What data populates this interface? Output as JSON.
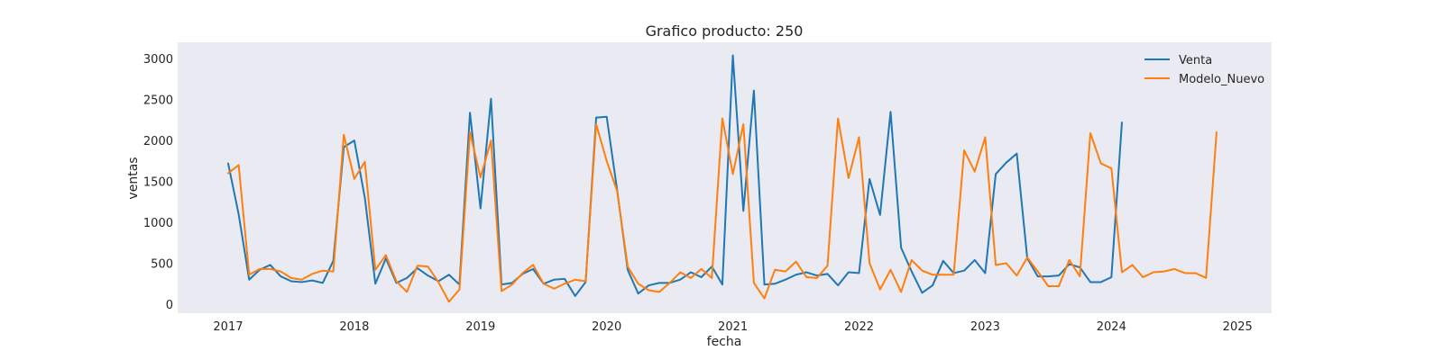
{
  "chart_data": {
    "type": "line",
    "title": "Grafico producto: 250",
    "xlabel": "fecha",
    "ylabel": "ventas",
    "xlim": [
      2016.6,
      2025.27
    ],
    "ylim": [
      -110,
      3200
    ],
    "x_ticks": [
      2017,
      2018,
      2019,
      2020,
      2021,
      2022,
      2023,
      2024,
      2025
    ],
    "y_ticks": [
      0,
      500,
      1000,
      1500,
      2000,
      2500,
      3000
    ],
    "grid": false,
    "legend_position": "top-right",
    "x_start_year": 2017,
    "points_per_year": 12,
    "colors": {
      "plot_bg": "#eaeaf2"
    },
    "series": [
      {
        "name": "Venta",
        "color": "#1f77b4",
        "values": [
          1720,
          1100,
          300,
          420,
          480,
          340,
          280,
          270,
          290,
          260,
          530,
          1920,
          2000,
          1300,
          250,
          560,
          260,
          320,
          440,
          350,
          280,
          360,
          240,
          2340,
          1170,
          2510,
          240,
          260,
          370,
          430,
          250,
          300,
          310,
          100,
          270,
          2280,
          2290,
          1390,
          420,
          130,
          230,
          260,
          260,
          300,
          390,
          330,
          460,
          240,
          3040,
          1140,
          2610,
          240,
          250,
          300,
          360,
          390,
          350,
          370,
          230,
          390,
          380,
          1530,
          1090,
          2350,
          690,
          400,
          140,
          230,
          530,
          380,
          410,
          540,
          380,
          1590,
          1730,
          1840,
          560,
          340,
          340,
          350,
          490,
          450,
          270,
          270,
          330,
          2220
        ]
      },
      {
        "name": "Modelo_Nuevo",
        "color": "#ff7f0e",
        "values": [
          1600,
          1700,
          360,
          430,
          430,
          400,
          320,
          300,
          370,
          410,
          400,
          2070,
          1530,
          1740,
          420,
          600,
          280,
          150,
          470,
          460,
          270,
          30,
          180,
          2100,
          1550,
          2000,
          160,
          240,
          380,
          480,
          250,
          190,
          250,
          300,
          280,
          2200,
          1750,
          1380,
          460,
          250,
          170,
          150,
          260,
          390,
          320,
          430,
          320,
          2270,
          1590,
          2200,
          260,
          70,
          420,
          400,
          520,
          330,
          320,
          470,
          2270,
          1540,
          2040,
          500,
          180,
          420,
          150,
          540,
          410,
          360,
          360,
          360,
          1880,
          1620,
          2040,
          480,
          500,
          350,
          570,
          400,
          220,
          220,
          540,
          340,
          2090,
          1720,
          1660,
          390,
          480,
          330,
          390,
          400,
          430,
          380,
          380,
          320,
          2100
        ]
      }
    ]
  }
}
